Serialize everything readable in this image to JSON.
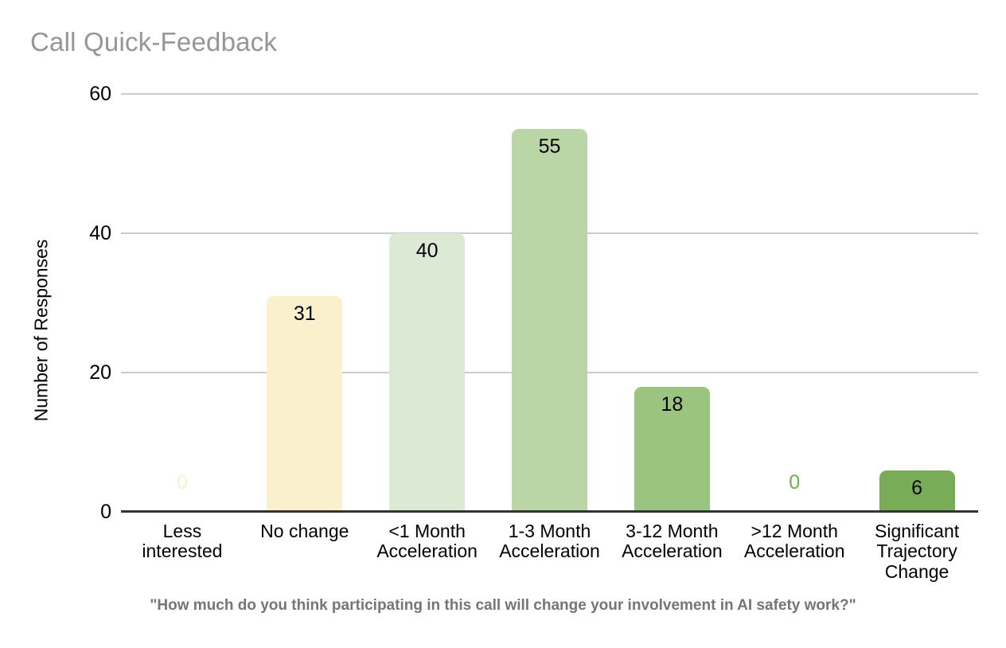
{
  "title": "Call Quick-Feedback",
  "subtitle": "\"How much do you think participating in this call will change your involvement in AI safety work?\"",
  "chart_data": {
    "type": "bar",
    "title": "Call Quick-Feedback",
    "categories": [
      "Less interested",
      "No change",
      "<1 Month Acceleration",
      "1-3 Month Acceleration",
      "3-12 Month Acceleration",
      ">12 Month Acceleration",
      "Significant Trajectory Change"
    ],
    "values": [
      0,
      31,
      40,
      55,
      18,
      0,
      6
    ],
    "bar_colors": [
      "#FAF0C8",
      "#FAF0CC",
      "#DCE9D5",
      "#BAD5A6",
      "#9BC480",
      "#6FAE4E",
      "#79AC57"
    ],
    "xlabel": "",
    "ylabel": "Number of Responses",
    "ylim": [
      0,
      60
    ],
    "yticks": [
      0,
      20,
      40,
      60
    ],
    "grid": true,
    "legend": false,
    "data_labels": true,
    "footnote": "\"How much do you think participating in this call will change your involvement in AI safety work?\""
  },
  "colors": {
    "title_text": "#969696",
    "gridline": "#cccccc",
    "axis_line": "#333333",
    "tick_label": "#000000",
    "subtitle_text": "#757575",
    "background": "#ffffff"
  }
}
